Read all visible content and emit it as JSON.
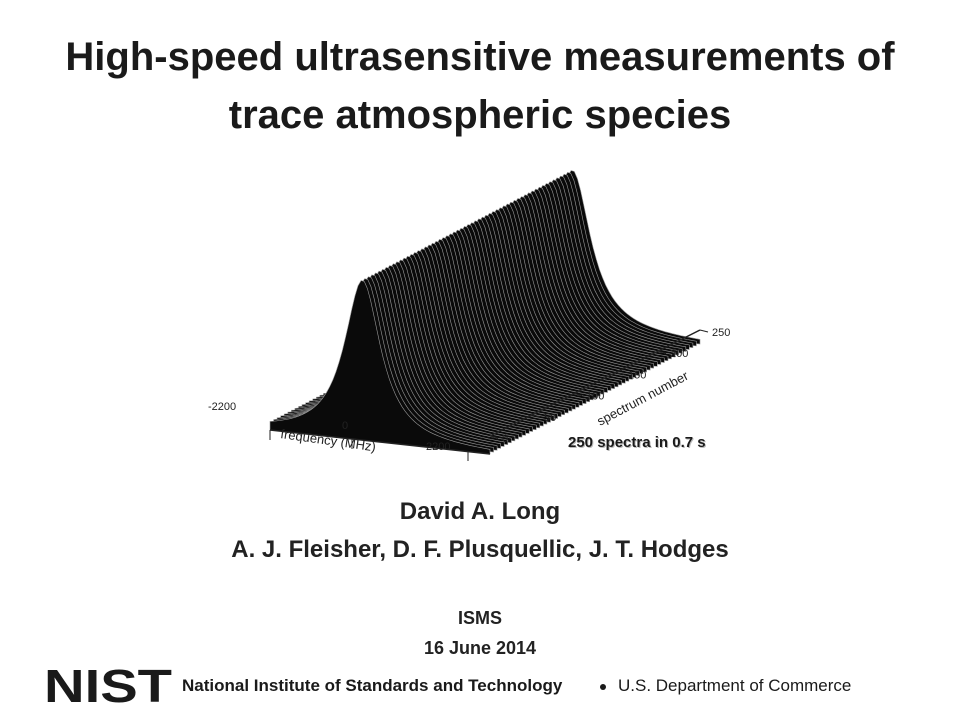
{
  "slide": {
    "title_line1": "High-speed ultrasensitive measurements of",
    "title_line2": "trace atmospheric species",
    "caption": "250 spectra in 0.7 s",
    "author_main": "David A. Long",
    "coauthors": "A. J. Fleisher, D. F. Plusquellic, J. T. Hodges",
    "event": "ISMS",
    "date": "16 June 2014"
  },
  "footer": {
    "logo_text": "NIST",
    "organization": "National Institute of Standards and Technology",
    "department": "U.S. Department of Commerce"
  },
  "figure": {
    "x_axis_label": "frequency (MHz)",
    "x_ticks": [
      "-2200",
      "0",
      "2200"
    ],
    "y_axis_label": "spectrum number",
    "y_ticks": [
      "0",
      "50",
      "100",
      "150",
      "200",
      "250"
    ],
    "spectra_count": 250,
    "colors": {
      "fill": "#0a0a0a",
      "line": "#9a9a9a"
    }
  }
}
